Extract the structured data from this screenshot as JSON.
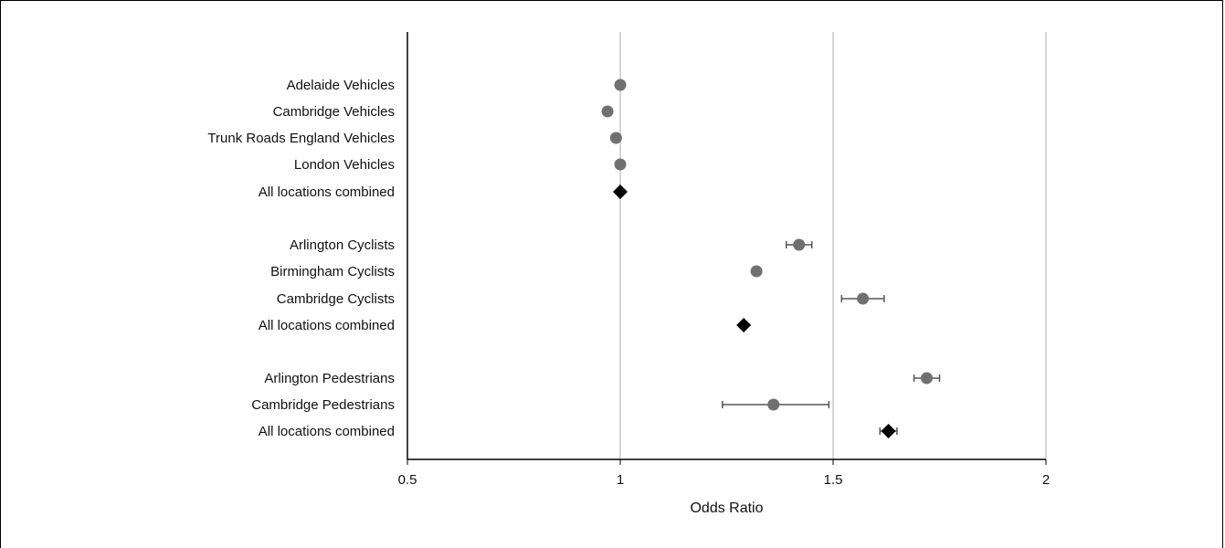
{
  "chart_data": {
    "type": "scatter",
    "subtype": "forest-plot",
    "xlabel": "Odds Ratio",
    "xlim": [
      0.5,
      2
    ],
    "xticks": [
      "0.5",
      "1",
      "1.5",
      "2"
    ],
    "grid": true,
    "rows": [
      {
        "label": "Adelaide Vehicles",
        "or": 1.0,
        "lo": null,
        "hi": null,
        "marker": "circle"
      },
      {
        "label": "Cambridge Vehicles",
        "or": 0.97,
        "lo": null,
        "hi": null,
        "marker": "circle"
      },
      {
        "label": "Trunk Roads England Vehicles",
        "or": 0.99,
        "lo": null,
        "hi": null,
        "marker": "circle"
      },
      {
        "label": "London Vehicles",
        "or": 1.0,
        "lo": null,
        "hi": null,
        "marker": "circle"
      },
      {
        "label": "All locations combined",
        "or": 1.0,
        "lo": null,
        "hi": null,
        "marker": "diamond"
      },
      {
        "label": "Arlington Cyclists",
        "or": 1.42,
        "lo": 1.39,
        "hi": 1.45,
        "marker": "circle"
      },
      {
        "label": "Birmingham Cyclists",
        "or": 1.32,
        "lo": null,
        "hi": null,
        "marker": "circle"
      },
      {
        "label": "Cambridge Cyclists",
        "or": 1.57,
        "lo": 1.52,
        "hi": 1.62,
        "marker": "circle"
      },
      {
        "label": "All locations combined",
        "or": 1.29,
        "lo": null,
        "hi": null,
        "marker": "diamond"
      },
      {
        "label": "Arlington Pedestrians",
        "or": 1.72,
        "lo": 1.69,
        "hi": 1.75,
        "marker": "circle"
      },
      {
        "label": "Cambridge Pedestrians",
        "or": 1.36,
        "lo": 1.24,
        "hi": 1.49,
        "marker": "circle"
      },
      {
        "label": "All locations combined",
        "or": 1.63,
        "lo": 1.61,
        "hi": 1.65,
        "marker": "diamond"
      }
    ],
    "colors": {
      "point": "#707070",
      "combined": "#000000",
      "grid": "#c8c8c8",
      "axis": "#000000",
      "errorbar": "#555555"
    }
  }
}
